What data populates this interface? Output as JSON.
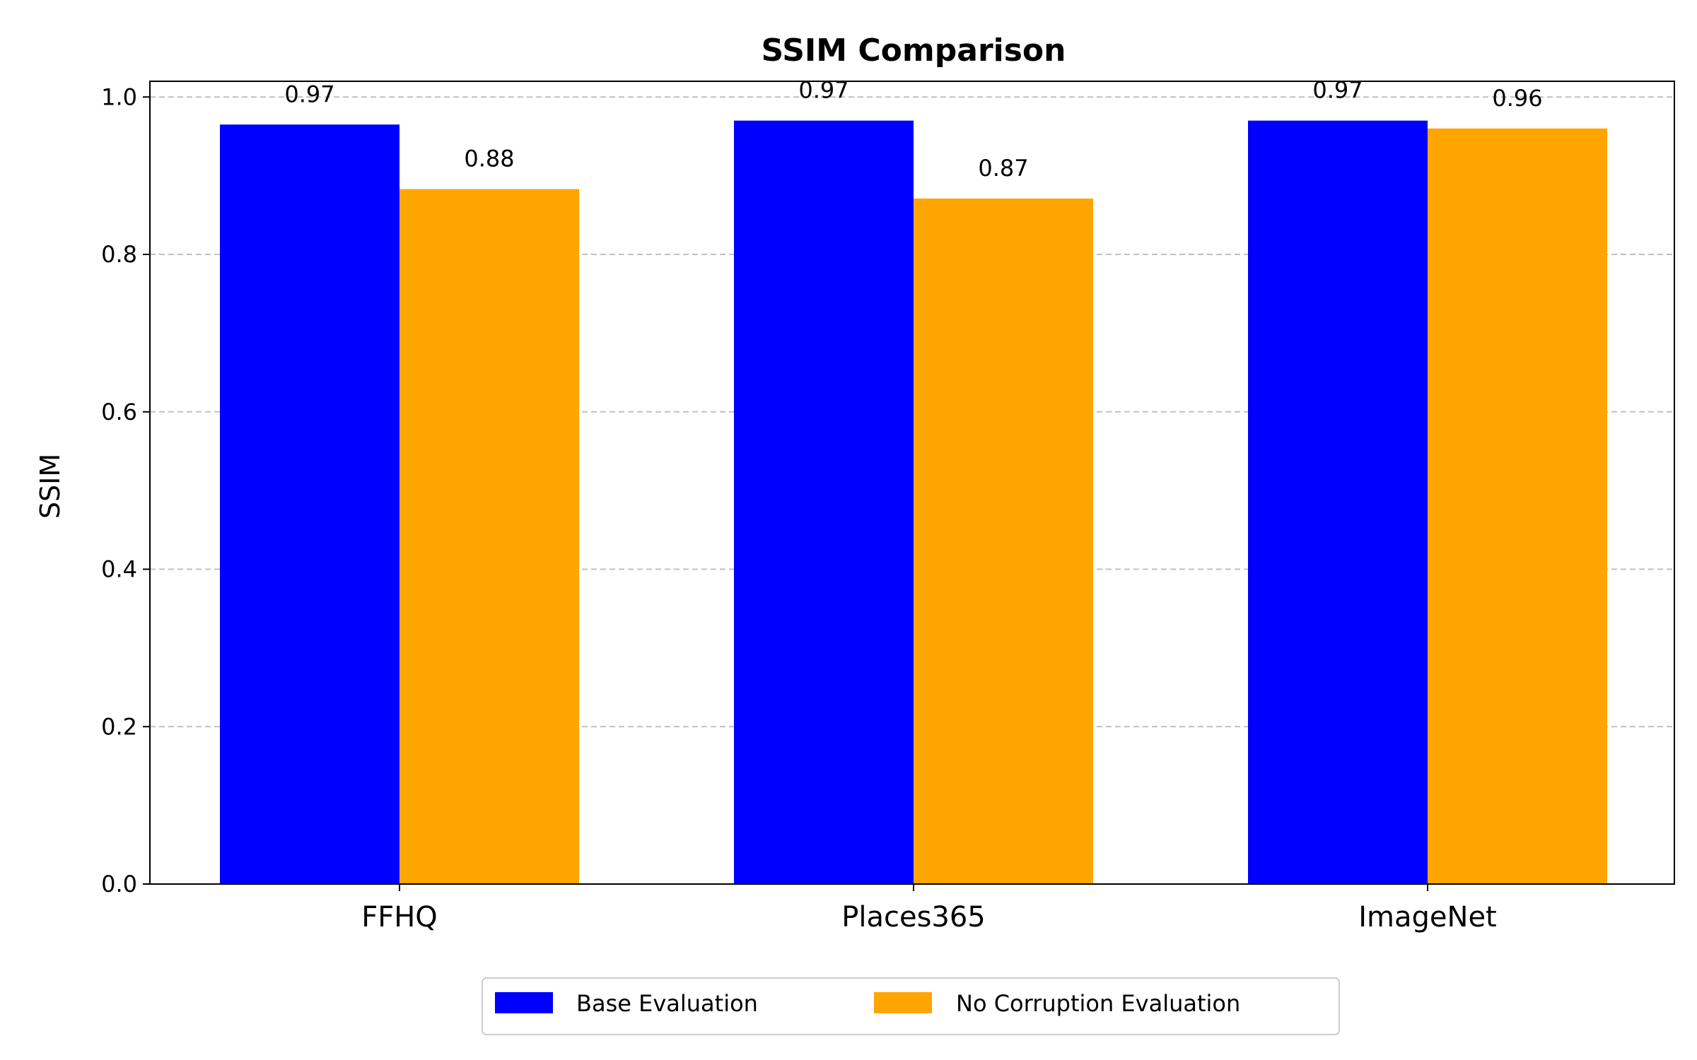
{
  "chart_data": {
    "type": "bar",
    "title": "SSIM Comparison",
    "xlabel": "",
    "ylabel": "SSIM",
    "categories": [
      "FFHQ",
      "Places365",
      "ImageNet"
    ],
    "series": [
      {
        "name": "Base Evaluation",
        "color": "#0000ff",
        "values": [
          0.965,
          0.97,
          0.97
        ],
        "labels": [
          "0.97",
          "0.97",
          "0.97"
        ]
      },
      {
        "name": "No Corruption Evaluation",
        "color": "#ffa500",
        "values": [
          0.883,
          0.871,
          0.96
        ],
        "labels": [
          "0.88",
          "0.87",
          "0.96"
        ]
      }
    ],
    "ylim": [
      0,
      1.02
    ],
    "yticks": [
      0.0,
      0.2,
      0.4,
      0.6,
      0.8,
      1.0
    ],
    "ytick_labels": [
      "0.0",
      "0.2",
      "0.4",
      "0.6",
      "0.8",
      "1.0"
    ],
    "grid": {
      "axis": "y",
      "style": "dashed",
      "color": "#c0c0c0"
    },
    "legend_position": "bottom-center"
  }
}
